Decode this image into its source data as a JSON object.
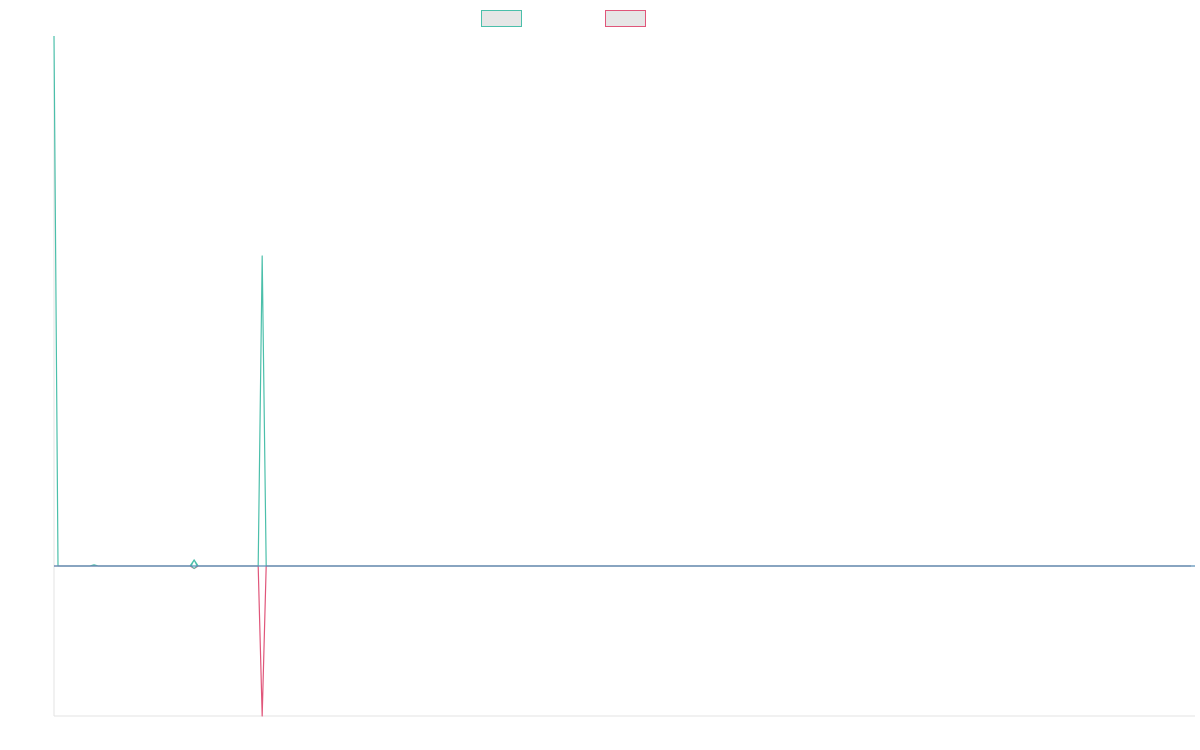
{
  "chart_data": {
    "type": "line",
    "title": "",
    "xlabel": "",
    "ylabel": "",
    "grid": false,
    "legend": {
      "placement": "top-center",
      "style": "swatch-boxes"
    },
    "x": [
      0,
      1,
      2,
      3,
      4,
      5,
      6,
      7,
      8,
      9,
      10,
      11,
      12,
      13,
      14,
      15,
      16,
      17,
      18,
      19,
      20,
      21,
      22,
      23,
      24,
      25,
      26,
      27,
      28,
      29,
      30,
      31,
      32,
      33,
      34,
      35,
      36,
      37,
      38,
      39,
      40,
      41,
      42,
      43,
      44,
      45,
      46,
      47,
      48,
      49,
      50,
      51,
      52,
      53,
      54,
      55,
      56,
      57,
      58,
      59,
      60,
      61,
      62,
      63,
      64,
      65,
      66,
      67,
      68,
      69,
      70,
      71,
      72,
      73,
      74,
      75,
      76,
      77,
      78,
      79,
      80,
      81,
      82,
      83,
      84,
      85,
      86,
      87,
      88,
      89,
      90,
      91,
      92,
      93,
      94,
      95,
      96,
      97,
      98,
      99,
      100,
      101,
      102,
      103,
      104,
      105,
      106,
      107,
      108,
      109,
      110,
      111,
      112,
      113,
      114,
      115,
      116,
      117,
      118,
      119,
      120,
      121,
      122,
      123,
      124,
      125,
      126,
      127,
      128,
      129,
      130,
      131,
      132,
      133,
      134,
      135,
      136,
      137,
      138,
      139,
      140,
      141,
      142,
      143,
      144,
      145,
      146,
      147,
      148,
      149,
      150,
      151,
      152,
      153,
      154,
      155,
      156,
      157,
      158,
      159,
      160,
      161,
      162,
      163,
      164,
      165,
      166,
      167,
      168,
      169,
      170,
      171,
      172,
      173,
      174,
      175,
      176,
      177,
      178,
      179,
      180,
      181,
      182,
      183,
      184,
      185,
      186,
      187,
      188,
      189,
      190,
      191,
      192,
      193,
      194,
      195,
      196,
      197,
      198,
      199,
      200,
      201,
      202,
      203,
      204,
      205,
      206,
      207,
      208,
      209,
      210,
      211,
      212,
      213,
      214,
      215,
      216,
      217,
      218,
      219,
      220,
      221,
      222,
      223,
      224,
      225,
      226,
      227,
      228,
      229,
      230,
      231,
      232,
      233,
      234,
      235,
      236,
      237,
      238,
      239,
      240,
      241,
      242,
      243,
      244,
      245,
      246,
      247,
      248,
      249,
      250,
      251,
      252,
      253,
      254,
      255,
      256,
      257,
      258,
      259,
      260,
      261,
      262,
      263,
      264,
      265,
      266,
      267,
      268,
      269,
      270,
      271,
      272,
      273,
      274,
      275,
      276,
      277,
      278,
      279,
      280,
      281,
      282,
      283,
      284
    ],
    "xlim": [
      0,
      285
    ],
    "ylim": [
      -150,
      530
    ],
    "series": [
      {
        "color": "#4bbfaa",
        "legend_fill": "#e6e6e6",
        "values": [
          530,
          0,
          0,
          0,
          0,
          0,
          0,
          0,
          0,
          0,
          1.2,
          0,
          0,
          0,
          0,
          0,
          0,
          0,
          0,
          0,
          0,
          0,
          0,
          0,
          0,
          0,
          0,
          0,
          0,
          0,
          0,
          0,
          0,
          0,
          0,
          6,
          0,
          0,
          0,
          0,
          0,
          0,
          0,
          0,
          0,
          0,
          0,
          0,
          0,
          0,
          0,
          0,
          310,
          0,
          0,
          0,
          0,
          0,
          0,
          0,
          0,
          0,
          0,
          0,
          0,
          0,
          0,
          0,
          0,
          0,
          0,
          0,
          0,
          0,
          0,
          0,
          0,
          0,
          0,
          0,
          0,
          0,
          0,
          0,
          0,
          0,
          0,
          0,
          0,
          0,
          0,
          0,
          0,
          0,
          0,
          0,
          0,
          0,
          0,
          0,
          0,
          0,
          0,
          0,
          0,
          0,
          0,
          0,
          0,
          0,
          0,
          0,
          0,
          0,
          0,
          0,
          0,
          0,
          0,
          0,
          0,
          0,
          0,
          0,
          0,
          0,
          0,
          0,
          0,
          0,
          0,
          0,
          0,
          0,
          0,
          0,
          0,
          0,
          0,
          0,
          0,
          0,
          0,
          0,
          0,
          0,
          0,
          0,
          0,
          0,
          0,
          0,
          0,
          0,
          0,
          0,
          0,
          0,
          0,
          0,
          0,
          0,
          0,
          0,
          0,
          0,
          0,
          0,
          0,
          0,
          0,
          0,
          0,
          0,
          0,
          0,
          0,
          0,
          0,
          0,
          0,
          0,
          0,
          0,
          0,
          0,
          0,
          0,
          0,
          0,
          0,
          0,
          0,
          0,
          0,
          0,
          0,
          0,
          0,
          0,
          0,
          0,
          0,
          0,
          0,
          0,
          0,
          0,
          0,
          0,
          0,
          0,
          0,
          0,
          0,
          0,
          0,
          0,
          0,
          0,
          0,
          0,
          0,
          0,
          0,
          0,
          0,
          0,
          0,
          0,
          0,
          0,
          0,
          0,
          0,
          0,
          0,
          0,
          0,
          0,
          0,
          0,
          0,
          0,
          0,
          0,
          0,
          0,
          0,
          0,
          0,
          0,
          0,
          0,
          0,
          0,
          0,
          0,
          0,
          0,
          0,
          0,
          0,
          0,
          0,
          0,
          0,
          0,
          0,
          0,
          0,
          0,
          0,
          0,
          0,
          0,
          0,
          0,
          0,
          0,
          0,
          0,
          0,
          0,
          0
        ]
      },
      {
        "color": "#e0567a",
        "legend_fill": "#e6e6e6",
        "values": [
          0,
          0,
          0,
          0,
          0,
          0,
          0,
          0,
          0,
          0,
          0,
          0,
          0,
          0,
          0,
          0,
          0,
          0,
          0,
          0,
          0,
          0,
          0,
          0,
          0,
          0,
          0,
          0,
          0,
          0,
          0,
          0,
          0,
          0,
          0,
          -2.5,
          0,
          0,
          0,
          0,
          0,
          0,
          0,
          0,
          0,
          0,
          0,
          0,
          0,
          0,
          0,
          0,
          -150,
          0,
          0,
          0,
          0,
          0,
          0,
          0,
          0,
          0,
          0,
          0,
          0,
          0,
          0,
          0,
          0,
          0,
          0,
          0,
          0,
          0,
          0,
          0,
          0,
          0,
          0,
          0,
          0,
          0,
          0,
          0,
          0,
          0,
          0,
          0,
          0,
          0,
          0,
          0,
          0,
          0,
          0,
          0,
          0,
          0,
          0,
          0,
          0,
          0,
          0,
          0,
          0,
          0,
          0,
          0,
          0,
          0,
          0,
          0,
          0,
          0,
          0,
          0,
          0,
          0,
          0,
          0,
          0,
          0,
          0,
          0,
          0,
          0,
          0,
          0,
          0,
          0,
          0,
          0,
          0,
          0,
          0,
          0,
          0,
          0,
          0,
          0,
          0,
          0,
          0,
          0,
          0,
          0,
          0,
          0,
          0,
          0,
          0,
          0,
          0,
          0,
          0,
          0,
          0,
          0,
          0,
          0,
          0,
          0,
          0,
          0,
          0,
          0,
          0,
          0,
          0,
          0,
          0,
          0,
          0,
          0,
          0,
          0,
          0,
          0,
          0,
          0,
          0,
          0,
          0,
          0,
          0,
          0,
          0,
          0,
          0,
          0,
          0,
          0,
          0,
          0,
          0,
          0,
          0,
          0,
          0,
          0,
          0,
          0,
          0,
          0,
          0,
          0,
          0,
          0,
          0,
          0,
          0,
          0,
          0,
          0,
          0,
          0,
          0,
          0,
          0,
          0,
          0,
          0,
          0,
          0,
          0,
          0,
          0,
          0,
          0,
          0,
          0,
          0,
          0,
          0,
          0,
          0,
          0,
          0,
          0,
          0,
          0,
          0,
          0,
          0,
          0,
          0,
          0,
          0,
          0,
          0,
          0,
          0,
          0,
          0,
          0,
          0,
          0,
          0,
          0,
          0,
          0,
          0,
          0,
          0,
          0,
          0,
          0,
          0,
          0,
          0,
          0,
          0,
          0,
          0,
          0,
          0,
          0,
          0,
          0,
          0,
          0,
          0,
          0,
          0,
          0
        ]
      }
    ],
    "zero_line_color": "#5a8fb8",
    "axis_color": "#e3e3e3"
  }
}
